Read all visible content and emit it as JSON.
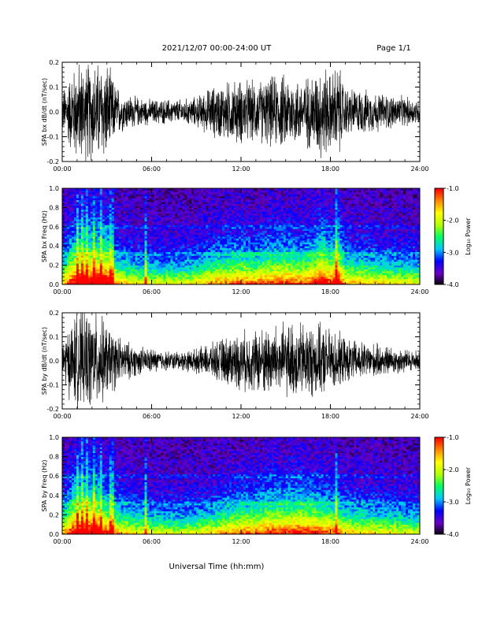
{
  "header": {
    "date_range": "2021/12/07  00:00-24:00 UT",
    "page": "Page 1/1"
  },
  "x_axis": {
    "label": "Universal Time (hh:mm)",
    "range_hours": [
      0,
      24
    ],
    "ticks": [
      "00:00",
      "06:00",
      "12:00",
      "18:00",
      "24:00"
    ]
  },
  "colorbar": {
    "label": "Log₁₀ Power",
    "ticks": [
      "-1.0",
      "-2.0",
      "-3.0",
      "-4.0"
    ],
    "range": [
      -4.0,
      -1.0
    ],
    "colormap": [
      "#000000",
      "#6b00c8",
      "#0000ff",
      "#00c8ff",
      "#00ff64",
      "#b4ff00",
      "#ffff00",
      "#ff8c00",
      "#ff0000"
    ]
  },
  "chart_data": [
    {
      "type": "line",
      "ylabel": "SPA bx dB/dt (nT/sec)",
      "ylim": [
        -0.2,
        0.2
      ],
      "yticks": [
        "0.2",
        "0.1",
        "0.0",
        "-0.1",
        "-0.2"
      ],
      "series": [
        {
          "x": [
            0,
            0.5,
            1,
            1.5,
            2,
            2.5,
            3,
            3.5,
            4,
            5,
            6,
            7,
            8,
            9,
            10,
            11,
            12,
            13,
            14,
            15,
            16,
            17,
            17.5,
            18,
            18.5,
            19,
            20,
            21,
            22,
            23,
            24
          ],
          "values": [
            0.08,
            0.15,
            0.2,
            0.2,
            0.2,
            0.2,
            0.2,
            0.12,
            0.08,
            0.06,
            0.05,
            0.05,
            0.05,
            0.06,
            0.1,
            0.12,
            0.13,
            0.12,
            0.14,
            0.15,
            0.13,
            0.16,
            0.2,
            0.15,
            0.2,
            0.1,
            0.09,
            0.08,
            0.07,
            0.06,
            0.05
          ]
        }
      ]
    },
    {
      "type": "heatmap",
      "ylabel": "SPA bx Freq (Hz)",
      "ylim": [
        0.0,
        1.0
      ],
      "yticks": [
        "1.0",
        "0.8",
        "0.6",
        "0.4",
        "0.2",
        "0.0"
      ]
    },
    {
      "type": "line",
      "ylabel": "SPA by dB/dt (nT/sec)",
      "ylim": [
        -0.2,
        0.2
      ],
      "yticks": [
        "0.2",
        "0.1",
        "0.0",
        "-0.1",
        "-0.2"
      ],
      "series": [
        {
          "x": [
            0,
            0.5,
            1,
            1.5,
            2,
            2.5,
            3,
            3.5,
            4,
            5,
            6,
            7,
            8,
            9,
            10,
            11,
            12,
            13,
            14,
            15,
            16,
            17,
            17.5,
            18,
            18.5,
            19,
            20,
            21,
            22,
            23,
            24
          ],
          "values": [
            0.09,
            0.15,
            0.2,
            0.2,
            0.2,
            0.19,
            0.15,
            0.12,
            0.09,
            0.06,
            0.05,
            0.04,
            0.04,
            0.05,
            0.07,
            0.1,
            0.12,
            0.13,
            0.15,
            0.15,
            0.16,
            0.15,
            0.14,
            0.13,
            0.12,
            0.09,
            0.08,
            0.07,
            0.06,
            0.05,
            0.04
          ]
        }
      ]
    },
    {
      "type": "heatmap",
      "ylabel": "SPA by Freq (Hz)",
      "ylim": [
        0.0,
        1.0
      ],
      "yticks": [
        "1.0",
        "0.8",
        "0.6",
        "0.4",
        "0.2",
        "0.0"
      ]
    }
  ]
}
